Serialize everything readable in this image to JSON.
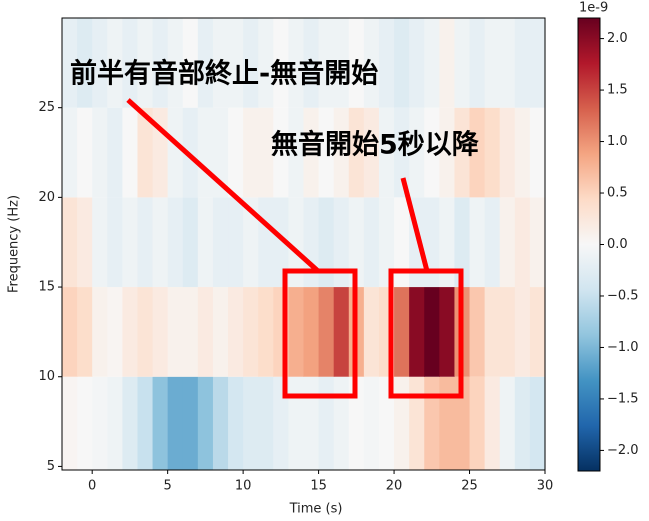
{
  "chart_data": {
    "type": "heatmap",
    "xlabel": "Time (s)",
    "ylabel": "Frequency (Hz)",
    "xbins": [
      -2,
      -1,
      0,
      1,
      2,
      3,
      4,
      5,
      6,
      7,
      8,
      9,
      10,
      11,
      12,
      13,
      14,
      15,
      16,
      17,
      18,
      19,
      20,
      21,
      22,
      23,
      24,
      25,
      26,
      27,
      28,
      29,
      30
    ],
    "ybins": [
      4.8,
      10,
      15,
      20,
      25,
      30
    ],
    "values": [
      [
        0.05,
        0.0,
        -0.05,
        -0.1,
        -0.3,
        -0.5,
        -0.9,
        -1.1,
        -1.1,
        -0.9,
        -0.6,
        -0.4,
        -0.3,
        -0.3,
        -0.2,
        -0.1,
        -0.1,
        -0.2,
        -0.1,
        0.0,
        -0.05,
        0.0,
        0.1,
        0.3,
        0.6,
        0.7,
        0.7,
        0.5,
        0.2,
        -0.1,
        -0.3,
        -0.4
      ],
      [
        0.5,
        0.4,
        0.1,
        0.05,
        0.2,
        0.3,
        0.2,
        0.1,
        0.1,
        0.2,
        0.1,
        0.2,
        0.3,
        0.4,
        0.5,
        0.8,
        0.9,
        1.1,
        1.5,
        0.8,
        0.3,
        0.4,
        1.2,
        2.0,
        2.2,
        2.0,
        1.0,
        0.6,
        0.3,
        0.3,
        0.2,
        0.3
      ],
      [
        0.3,
        0.2,
        -0.1,
        -0.2,
        -0.1,
        -0.2,
        -0.1,
        -0.2,
        -0.3,
        -0.1,
        -0.2,
        -0.2,
        -0.1,
        -0.2,
        -0.2,
        -0.1,
        -0.2,
        -0.3,
        -0.2,
        -0.1,
        -0.2,
        -0.1,
        0.0,
        -0.2,
        -0.2,
        -0.1,
        -0.3,
        -0.1,
        -0.2,
        0.1,
        0.2,
        0.1
      ],
      [
        -0.1,
        0.0,
        -0.1,
        -0.2,
        0.0,
        0.3,
        0.2,
        -0.1,
        -0.2,
        -0.1,
        -0.1,
        0.0,
        0.1,
        0.1,
        0.0,
        -0.1,
        0.1,
        0.0,
        0.1,
        0.3,
        0.2,
        -0.1,
        -0.2,
        -0.1,
        0.0,
        0.1,
        0.3,
        0.5,
        0.4,
        0.2,
        0.1,
        0.0
      ],
      [
        -0.2,
        -0.3,
        -0.2,
        -0.1,
        -0.2,
        -0.1,
        -0.2,
        -0.1,
        0.0,
        -0.2,
        -0.1,
        -0.1,
        -0.2,
        -0.1,
        0.0,
        -0.1,
        -0.2,
        -0.1,
        -0.1,
        0.0,
        -0.1,
        -0.2,
        -0.3,
        -0.2,
        -0.1,
        0.1,
        -0.1,
        -0.2,
        -0.1,
        -0.1,
        -0.2,
        -0.2
      ]
    ],
    "xlim": [
      -2,
      30
    ],
    "ylim": [
      4.8,
      30
    ],
    "xticks": [
      0,
      5,
      10,
      15,
      20,
      25,
      30
    ],
    "yticks": [
      5,
      10,
      15,
      20,
      25
    ],
    "clim": [
      -2.2,
      2.2
    ],
    "colormap": [
      "#053061",
      "#2166ac",
      "#4393c3",
      "#92c5de",
      "#d1e5f0",
      "#f7f7f7",
      "#fddbc7",
      "#f4a582",
      "#d6604d",
      "#b2182b",
      "#67001f"
    ],
    "colorbar_offset": "1e-9",
    "cticks": [
      {
        "value": 2.0,
        "label": "2.0"
      },
      {
        "value": 1.5,
        "label": "1.5"
      },
      {
        "value": 1.0,
        "label": "1.0"
      },
      {
        "value": 0.5,
        "label": "0.5"
      },
      {
        "value": 0.0,
        "label": "0.0"
      },
      {
        "value": -0.5,
        "label": "−0.5"
      },
      {
        "value": -1.0,
        "label": "−1.0"
      },
      {
        "value": -1.5,
        "label": "−1.5"
      },
      {
        "value": -2.0,
        "label": "−2.0"
      }
    ],
    "annotations": [
      "前半有音部終止-無音開始",
      "無音開始5秒以降"
    ]
  }
}
